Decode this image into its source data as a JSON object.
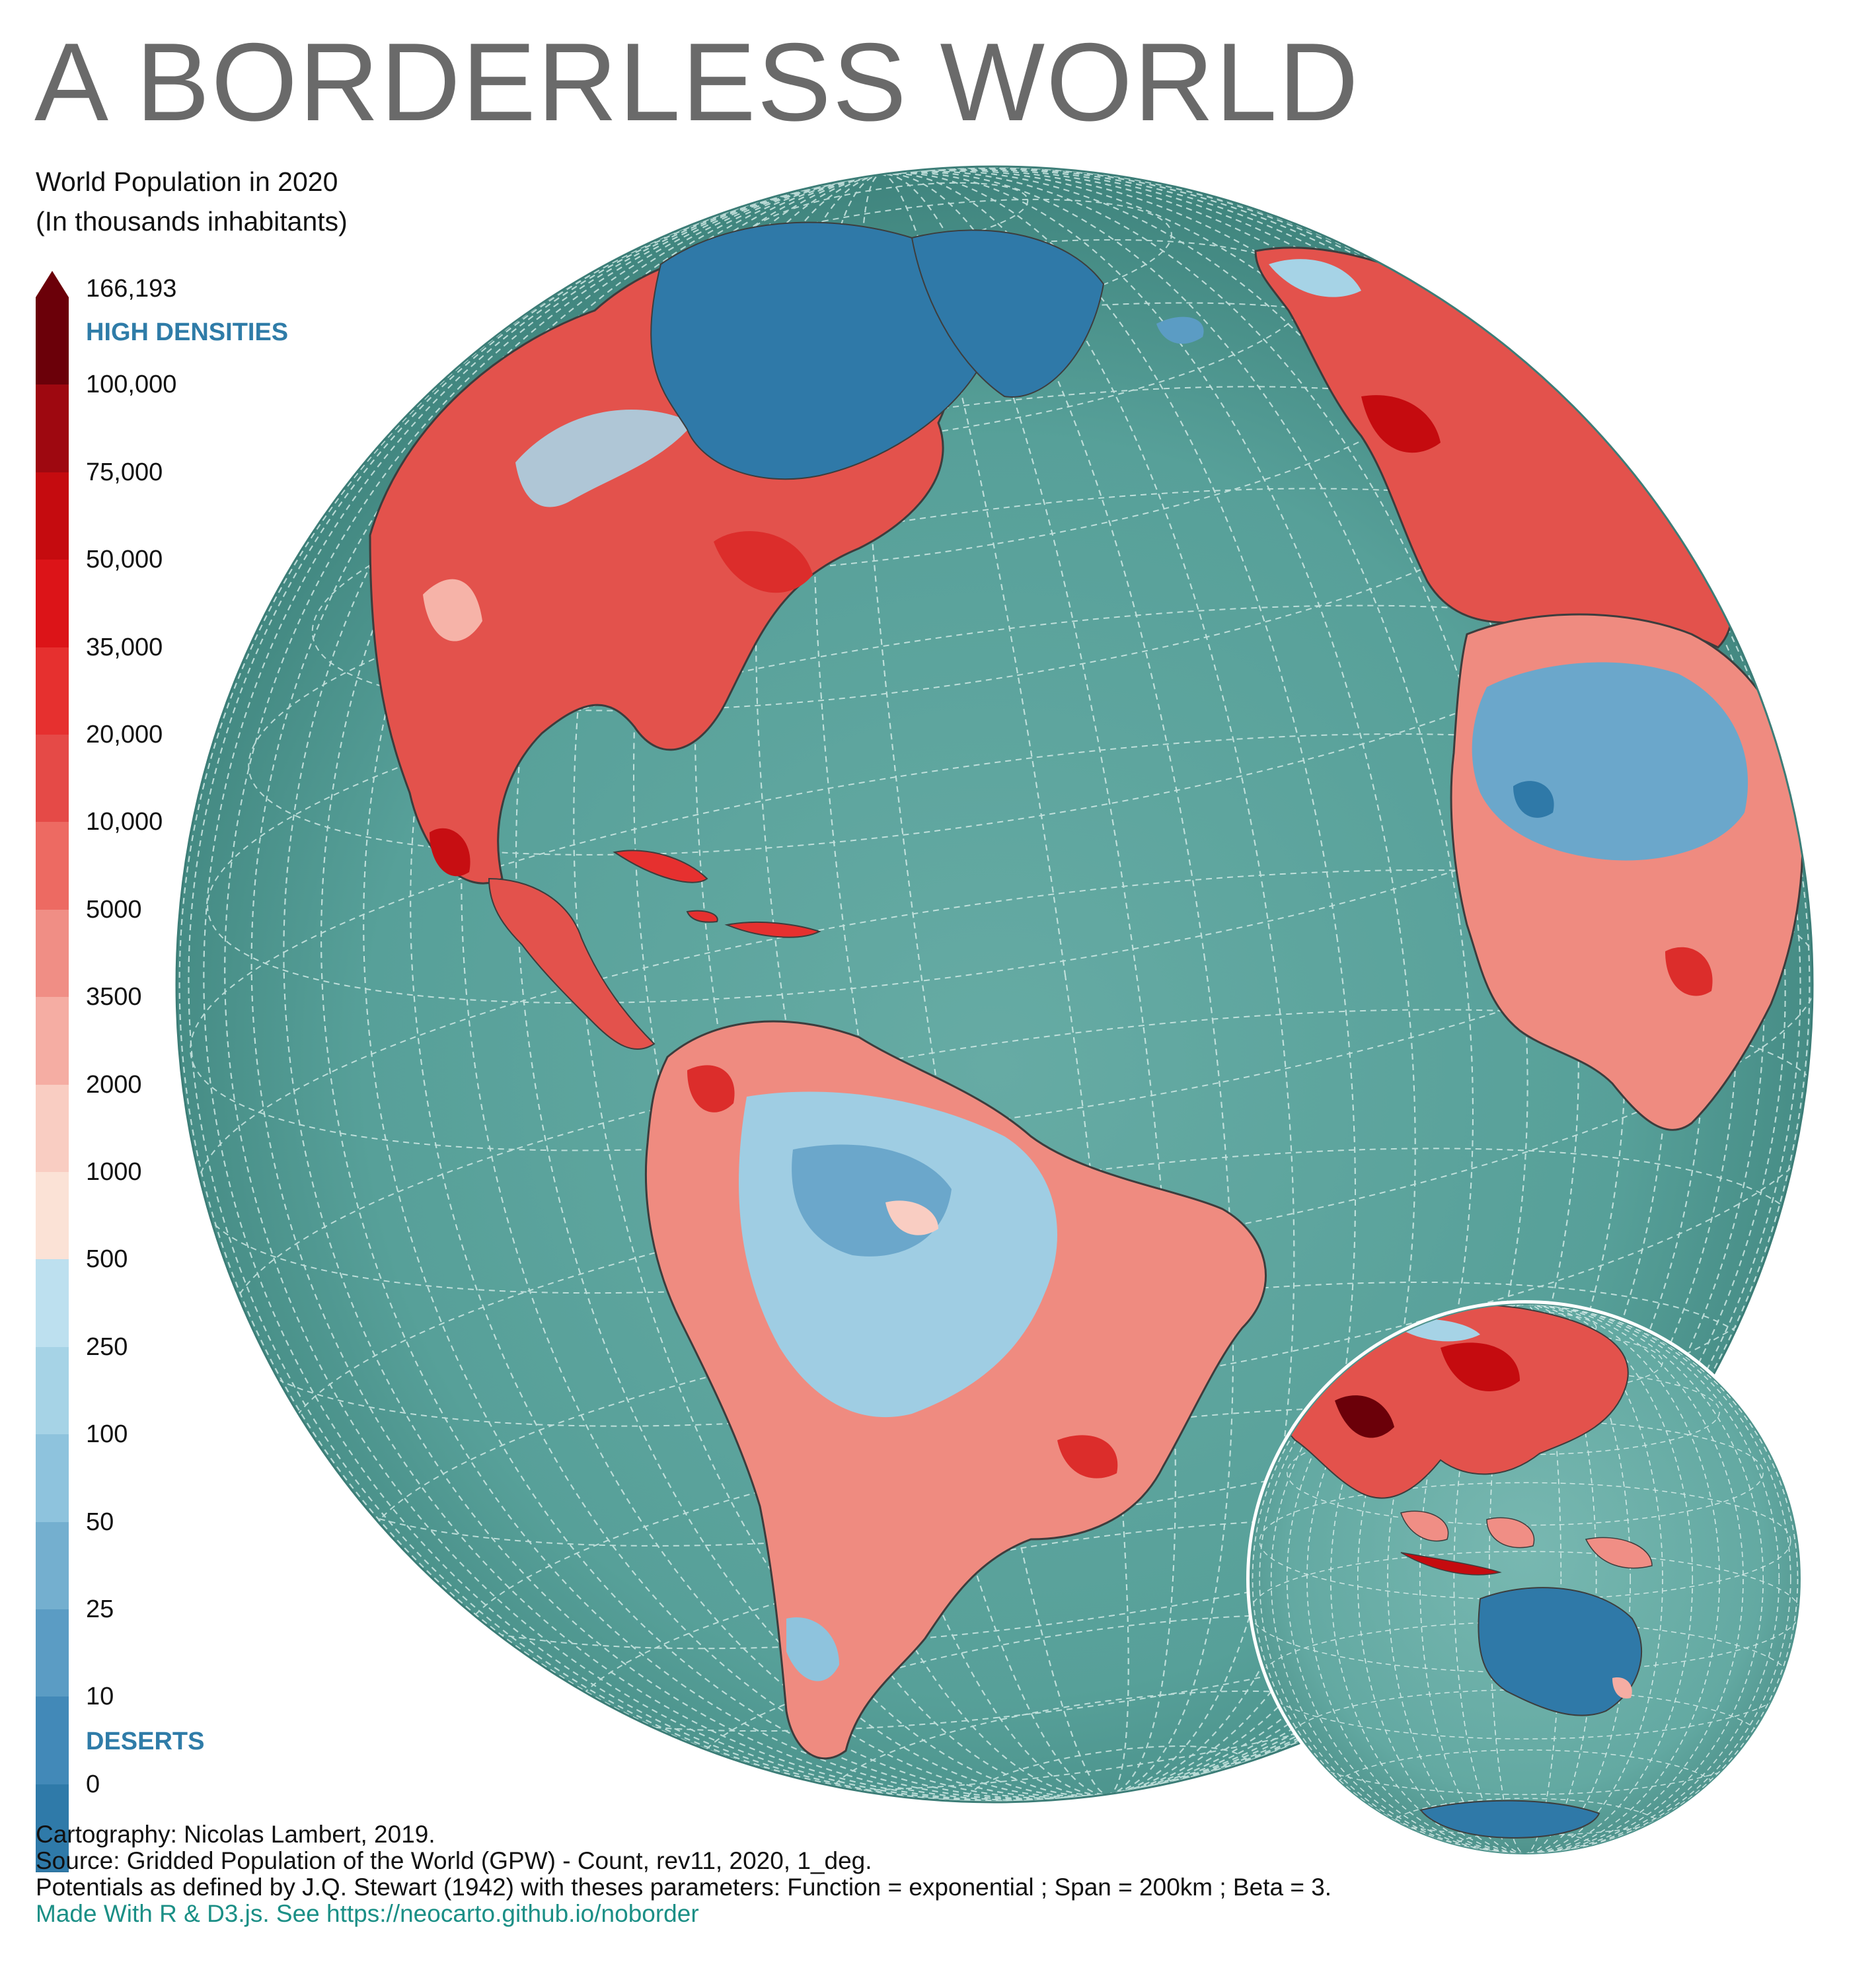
{
  "title": "A BORDERLESS WORLD",
  "legend": {
    "title_line1": "World Population in 2020",
    "title_line2": "(In thousands inhabitants)",
    "max_value": "166,193",
    "high_label": "HIGH DENSITIES",
    "low_label": "DESERTS",
    "category_color": "#2f7ca8",
    "ticks": [
      "100,000",
      "75,000",
      "50,000",
      "35,000",
      "20,000",
      "10,000",
      "5000",
      "3500",
      "2000",
      "1000",
      "500",
      "250",
      "100",
      "50",
      "25",
      "10",
      "0"
    ],
    "colors": [
      "#6b0009",
      "#9e0810",
      "#c50b0f",
      "#dc1418",
      "#e6302f",
      "#e54a47",
      "#ed6a62",
      "#f08e85",
      "#f5ada3",
      "#f9cdc2",
      "#fbe2d6",
      "#bde0ef",
      "#a6d3e6",
      "#8ec3dd",
      "#74afcf",
      "#5b9cc4",
      "#4289b8",
      "#2f7aa9"
    ]
  },
  "map": {
    "ocean_color": "#5aa29b",
    "graticule_color": "#d8eeea",
    "land_low_color": "#2f79a8",
    "land_high_color": "#e04a43",
    "globes": [
      "Americas / Atlantic",
      "Asia / Oceania inset"
    ]
  },
  "credits": {
    "line1": "Cartography: Nicolas Lambert, 2019.",
    "line2": "Source: Gridded Population of the World (GPW) - Count, rev11, 2020, 1_deg.",
    "line3": "Potentials as defined by J.Q. Stewart (1942) with theses parameters: Function = exponential ; Span = 200km ; Beta = 3.",
    "line4": "Made With R & D3.js. See https://neocarto.github.io/noborder"
  }
}
